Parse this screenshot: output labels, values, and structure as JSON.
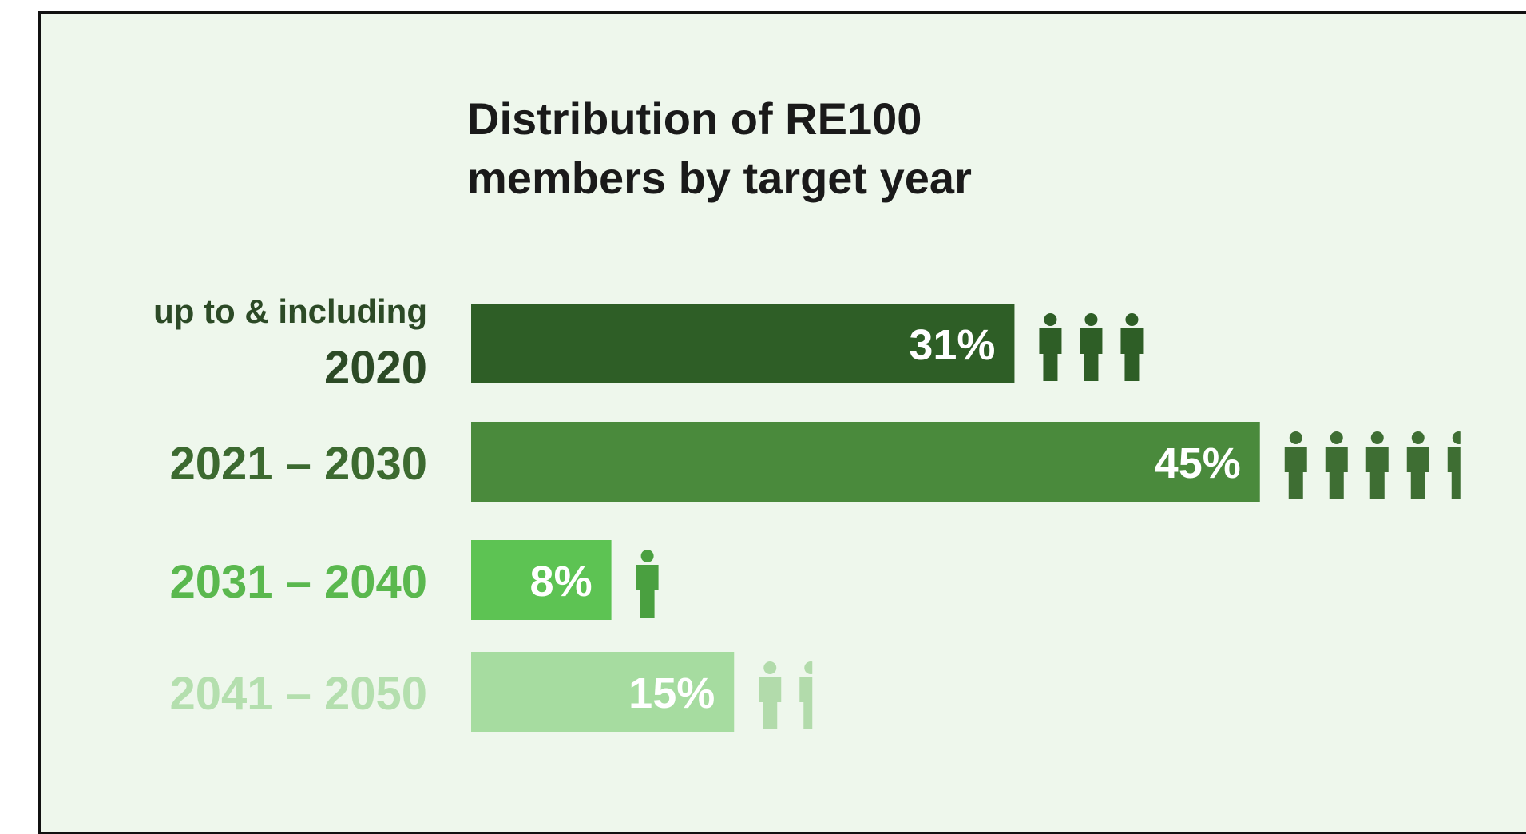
{
  "chart_data": {
    "type": "bar",
    "orientation": "horizontal",
    "title_lines": [
      "Distribution of RE100",
      "members by target year"
    ],
    "categories": [
      [
        "up to & including",
        "2020"
      ],
      [
        "2021 – 2030"
      ],
      [
        "2031 – 2040"
      ],
      [
        "2041 – 2050"
      ]
    ],
    "values": [
      31,
      45,
      8,
      15
    ],
    "value_labels": [
      "31%",
      "45%",
      "8%",
      "15%"
    ],
    "unit": "%",
    "bar_colors": [
      "#2e5e26",
      "#4a8a3c",
      "#5dc353",
      "#a6dca0"
    ],
    "label_colors": [
      "#2c4a26",
      "#3c6a30",
      "#5ab84e",
      "#b4dfae"
    ],
    "icon_colors": [
      "#2e5e26",
      "#3e6e33",
      "#4aa040",
      "#b2dbab"
    ],
    "icon_name": "person-icon",
    "people_icon_counts": [
      3,
      4.5,
      1,
      1.5
    ],
    "grid": false,
    "legend": "none"
  }
}
